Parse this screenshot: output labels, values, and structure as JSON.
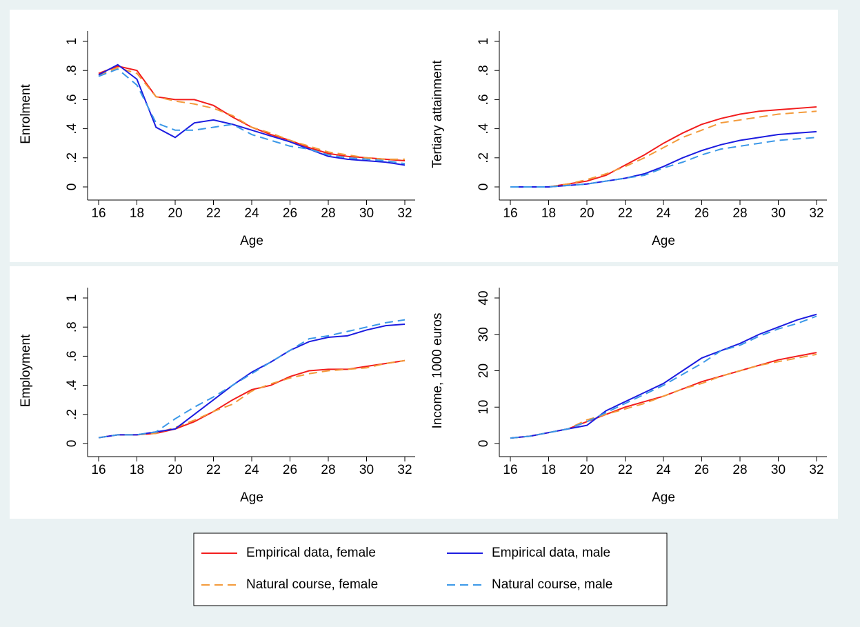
{
  "chart_data": [
    {
      "type": "line",
      "ylabel": "Enrolment",
      "xlabel": "Age",
      "x": [
        16,
        17,
        18,
        19,
        20,
        21,
        22,
        23,
        24,
        25,
        26,
        27,
        28,
        29,
        30,
        31,
        32
      ],
      "xlim": [
        16,
        32
      ],
      "xticks": [
        16,
        18,
        20,
        22,
        24,
        26,
        28,
        30,
        32
      ],
      "ylim": [
        0,
        1
      ],
      "yticks": [
        0,
        {
          "value": 0.2,
          "label": ".2"
        },
        {
          "value": 0.4,
          "label": ".4"
        },
        {
          "value": 0.6,
          "label": ".6"
        },
        {
          "value": 0.8,
          "label": ".8"
        },
        1
      ],
      "series": [
        {
          "name": "Empirical data, female",
          "color": "#f21d1d",
          "dashed": false,
          "values": [
            0.78,
            0.83,
            0.8,
            0.62,
            0.6,
            0.6,
            0.56,
            0.48,
            0.41,
            0.36,
            0.32,
            0.27,
            0.23,
            0.21,
            0.2,
            0.19,
            0.18
          ]
        },
        {
          "name": "Natural course, female",
          "color": "#f39a3a",
          "dashed": true,
          "values": [
            0.77,
            0.82,
            0.78,
            0.62,
            0.59,
            0.57,
            0.54,
            0.49,
            0.41,
            0.37,
            0.32,
            0.28,
            0.24,
            0.22,
            0.2,
            0.19,
            0.19
          ]
        },
        {
          "name": "Empirical data, male",
          "color": "#1c1ce0",
          "dashed": false,
          "values": [
            0.77,
            0.84,
            0.74,
            0.41,
            0.34,
            0.44,
            0.46,
            0.43,
            0.39,
            0.35,
            0.31,
            0.26,
            0.21,
            0.19,
            0.18,
            0.17,
            0.15
          ]
        },
        {
          "name": "Natural course, male",
          "color": "#3b98e8",
          "dashed": true,
          "values": [
            0.76,
            0.81,
            0.7,
            0.44,
            0.39,
            0.39,
            0.41,
            0.43,
            0.36,
            0.32,
            0.28,
            0.26,
            0.22,
            0.2,
            0.19,
            0.18,
            0.16
          ]
        }
      ]
    },
    {
      "type": "line",
      "ylabel": "Tertiary attainment",
      "xlabel": "Age",
      "x": [
        16,
        17,
        18,
        19,
        20,
        21,
        22,
        23,
        24,
        25,
        26,
        27,
        28,
        29,
        30,
        31,
        32
      ],
      "xlim": [
        16,
        32
      ],
      "xticks": [
        16,
        18,
        20,
        22,
        24,
        26,
        28,
        30,
        32
      ],
      "ylim": [
        0,
        1
      ],
      "yticks": [
        0,
        {
          "value": 0.2,
          "label": ".2"
        },
        {
          "value": 0.4,
          "label": ".4"
        },
        {
          "value": 0.6,
          "label": ".6"
        },
        {
          "value": 0.8,
          "label": ".8"
        },
        1
      ],
      "series": [
        {
          "color": "#f21d1d",
          "dashed": false,
          "values": [
            0,
            0,
            0,
            0.02,
            0.04,
            0.08,
            0.15,
            0.22,
            0.3,
            0.37,
            0.43,
            0.47,
            0.5,
            0.52,
            0.53,
            0.54,
            0.55
          ]
        },
        {
          "color": "#f39a3a",
          "dashed": true,
          "values": [
            0,
            0,
            0,
            0.02,
            0.05,
            0.09,
            0.14,
            0.2,
            0.27,
            0.34,
            0.39,
            0.44,
            0.46,
            0.48,
            0.5,
            0.51,
            0.52
          ]
        },
        {
          "color": "#1c1ce0",
          "dashed": false,
          "values": [
            0,
            0,
            0,
            0.01,
            0.02,
            0.04,
            0.06,
            0.09,
            0.14,
            0.2,
            0.25,
            0.29,
            0.32,
            0.34,
            0.36,
            0.37,
            0.38
          ]
        },
        {
          "color": "#3b98e8",
          "dashed": true,
          "values": [
            0,
            0,
            0,
            0.01,
            0.02,
            0.04,
            0.06,
            0.08,
            0.13,
            0.17,
            0.22,
            0.26,
            0.28,
            0.3,
            0.32,
            0.33,
            0.34
          ]
        }
      ]
    },
    {
      "type": "line",
      "ylabel": "Employment",
      "xlabel": "Age",
      "x": [
        16,
        17,
        18,
        19,
        20,
        21,
        22,
        23,
        24,
        25,
        26,
        27,
        28,
        29,
        30,
        31,
        32
      ],
      "xlim": [
        16,
        32
      ],
      "xticks": [
        16,
        18,
        20,
        22,
        24,
        26,
        28,
        30,
        32
      ],
      "ylim": [
        0,
        1
      ],
      "yticks": [
        0,
        {
          "value": 0.2,
          "label": ".2"
        },
        {
          "value": 0.4,
          "label": ".4"
        },
        {
          "value": 0.6,
          "label": ".6"
        },
        {
          "value": 0.8,
          "label": ".8"
        },
        1
      ],
      "series": [
        {
          "color": "#f21d1d",
          "dashed": false,
          "values": [
            0.04,
            0.06,
            0.06,
            0.07,
            0.1,
            0.15,
            0.22,
            0.3,
            0.37,
            0.4,
            0.46,
            0.5,
            0.51,
            0.51,
            0.53,
            0.55,
            0.57
          ]
        },
        {
          "color": "#f39a3a",
          "dashed": true,
          "values": [
            0.04,
            0.06,
            0.06,
            0.07,
            0.11,
            0.16,
            0.22,
            0.27,
            0.36,
            0.41,
            0.45,
            0.48,
            0.5,
            0.51,
            0.52,
            0.55,
            0.57
          ]
        },
        {
          "color": "#1c1ce0",
          "dashed": false,
          "values": [
            0.04,
            0.06,
            0.06,
            0.08,
            0.1,
            0.2,
            0.3,
            0.4,
            0.49,
            0.56,
            0.64,
            0.7,
            0.73,
            0.74,
            0.78,
            0.81,
            0.82
          ]
        },
        {
          "color": "#3b98e8",
          "dashed": true,
          "values": [
            0.04,
            0.06,
            0.06,
            0.08,
            0.17,
            0.25,
            0.32,
            0.4,
            0.48,
            0.56,
            0.64,
            0.72,
            0.74,
            0.77,
            0.8,
            0.83,
            0.85
          ]
        }
      ]
    },
    {
      "type": "line",
      "ylabel": "Income, 1000 euros",
      "xlabel": "Age",
      "x": [
        16,
        17,
        18,
        19,
        20,
        21,
        22,
        23,
        24,
        25,
        26,
        27,
        28,
        29,
        30,
        31,
        32
      ],
      "xlim": [
        16,
        32
      ],
      "xticks": [
        16,
        18,
        20,
        22,
        24,
        26,
        28,
        30,
        32
      ],
      "ylim": [
        0,
        40
      ],
      "yticks": [
        0,
        10,
        20,
        30,
        40
      ],
      "series": [
        {
          "color": "#f21d1d",
          "dashed": false,
          "values": [
            1.5,
            2,
            3,
            4,
            6,
            8,
            10,
            11.5,
            13,
            15,
            17,
            18.5,
            20,
            21.5,
            23,
            24,
            25
          ]
        },
        {
          "color": "#f39a3a",
          "dashed": true,
          "values": [
            1.5,
            2,
            3,
            4,
            6.5,
            8,
            9.5,
            11,
            13,
            15,
            16.5,
            18.5,
            20,
            21.5,
            22.5,
            23.5,
            24.5
          ]
        },
        {
          "color": "#1c1ce0",
          "dashed": false,
          "values": [
            1.5,
            2,
            3,
            4,
            5,
            9,
            11.5,
            14,
            16.5,
            20,
            23.5,
            25.5,
            27.5,
            30,
            32,
            34,
            35.5
          ]
        },
        {
          "color": "#3b98e8",
          "dashed": true,
          "values": [
            1.5,
            2,
            3,
            4,
            6,
            8.5,
            11,
            13.5,
            16,
            19,
            22,
            25.5,
            27,
            29.5,
            31.5,
            33,
            35
          ]
        }
      ]
    }
  ]
}
